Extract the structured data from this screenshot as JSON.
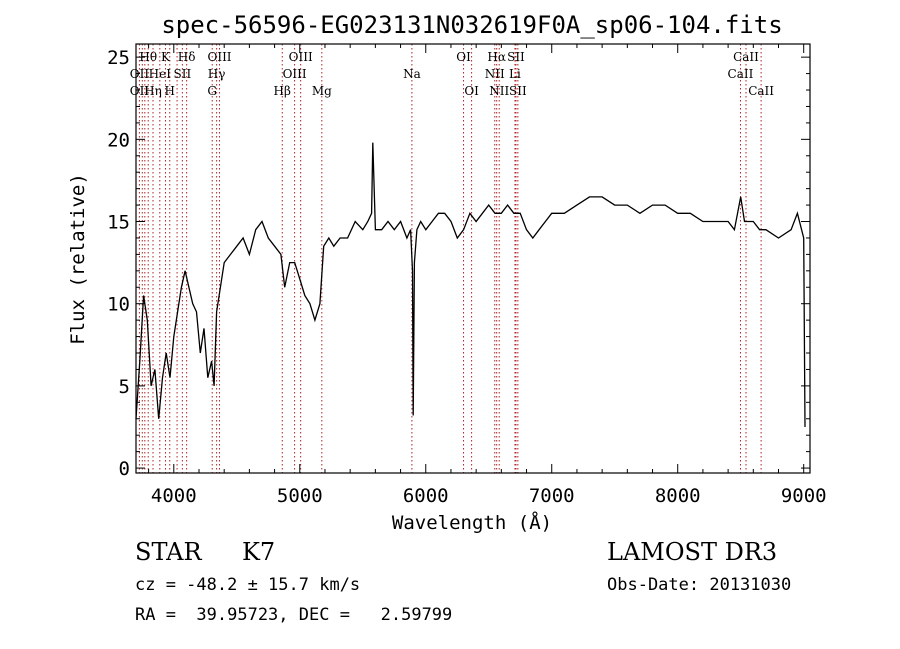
{
  "chart_data": {
    "type": "line",
    "title": "spec-56596-EG023131N032619F0A_sp06-104.fits",
    "xlabel": "Wavelength (Å)",
    "ylabel": "Flux (relative)",
    "xlim": [
      3700,
      9050
    ],
    "ylim": [
      -0.3,
      25.8
    ],
    "xticks": [
      4000,
      5000,
      6000,
      7000,
      8000,
      9000
    ],
    "yticks": [
      0,
      5,
      10,
      15,
      20,
      25
    ],
    "grid": false,
    "series": [
      {
        "x": [
          3700,
          3730,
          3760,
          3790,
          3820,
          3850,
          3880,
          3910,
          3940,
          3970,
          4000,
          4030,
          4060,
          4090,
          4120,
          4150,
          4180,
          4210,
          4240,
          4270,
          4300,
          4320,
          4340,
          4370,
          4400,
          4450,
          4500,
          4550,
          4600,
          4650,
          4700,
          4750,
          4800,
          4850,
          4880,
          4920,
          4960,
          5000,
          5040,
          5080,
          5120,
          5160,
          5190,
          5230,
          5270,
          5320,
          5380,
          5440,
          5500,
          5540,
          5570,
          5580,
          5600,
          5650,
          5700,
          5750,
          5800,
          5850,
          5880,
          5895,
          5900,
          5910,
          5930,
          5960,
          6000,
          6050,
          6100,
          6150,
          6200,
          6250,
          6300,
          6350,
          6400,
          6450,
          6500,
          6550,
          6600,
          6650,
          6700,
          6750,
          6800,
          6850,
          6900,
          6950,
          7000,
          7100,
          7200,
          7300,
          7400,
          7500,
          7600,
          7700,
          7800,
          7900,
          8000,
          8100,
          8200,
          8300,
          8400,
          8450,
          8500,
          8530,
          8560,
          8600,
          8650,
          8700,
          8800,
          8900,
          8950,
          9000,
          9010
        ],
        "y": [
          3.0,
          6.5,
          10.5,
          9.0,
          5.0,
          6.0,
          3.0,
          5.5,
          7.0,
          5.5,
          8.0,
          9.5,
          11.0,
          12.0,
          11.0,
          10.0,
          9.5,
          7.0,
          8.5,
          5.5,
          6.5,
          5.0,
          9.5,
          11.0,
          12.5,
          13.0,
          13.5,
          14.0,
          13.0,
          14.5,
          15.0,
          14.0,
          13.5,
          13.0,
          11.0,
          12.5,
          12.5,
          11.5,
          10.5,
          10.0,
          9.0,
          10.0,
          13.5,
          14.0,
          13.5,
          14.0,
          14.0,
          15.0,
          14.5,
          15.0,
          15.5,
          19.8,
          14.5,
          14.5,
          15.0,
          14.5,
          15.0,
          14.0,
          14.5,
          12.0,
          3.2,
          12.5,
          14.5,
          15.0,
          14.5,
          15.0,
          15.5,
          15.5,
          15.0,
          14.0,
          14.5,
          15.5,
          15.0,
          15.5,
          16.0,
          15.5,
          15.5,
          16.0,
          15.5,
          15.5,
          14.5,
          14.0,
          14.5,
          15.0,
          15.5,
          15.5,
          16.0,
          16.5,
          16.5,
          16.0,
          16.0,
          15.5,
          16.0,
          16.0,
          15.5,
          15.5,
          15.0,
          15.0,
          15.0,
          14.5,
          16.5,
          15.0,
          15.0,
          15.0,
          14.5,
          14.5,
          14.0,
          14.5,
          15.5,
          14.0,
          2.5
        ]
      }
    ],
    "annotations": {
      "line_wavelengths": [
        3727,
        3750,
        3770,
        3797,
        3835,
        3889,
        3934,
        3968,
        4026,
        4102,
        4068,
        4340,
        4305,
        4363,
        4861,
        4959,
        5007,
        5175,
        5890,
        6300,
        6364,
        6548,
        6563,
        6583,
        6708,
        6716,
        6731,
        8498,
        8542,
        8662
      ],
      "labels": [
        {
          "text": "Hθ",
          "w": 3797,
          "row": 0
        },
        {
          "text": "K",
          "w": 3934,
          "row": 0
        },
        {
          "text": "Hδ",
          "w": 4102,
          "row": 0
        },
        {
          "text": "OIII",
          "w": 4363,
          "row": 0
        },
        {
          "text": "OIII",
          "w": 5007,
          "row": 0
        },
        {
          "text": "OI",
          "w": 6300,
          "row": 0
        },
        {
          "text": "Hα",
          "w": 6563,
          "row": 0
        },
        {
          "text": "SII",
          "w": 6716,
          "row": 0
        },
        {
          "text": "CaII",
          "w": 8542,
          "row": 0
        },
        {
          "text": "OII",
          "w": 3727,
          "row": 1
        },
        {
          "text": "HeI",
          "w": 3889,
          "row": 1
        },
        {
          "text": "SII",
          "w": 4068,
          "row": 1
        },
        {
          "text": "Hγ",
          "w": 4340,
          "row": 1
        },
        {
          "text": "OIII",
          "w": 4959,
          "row": 1
        },
        {
          "text": "Na",
          "w": 5890,
          "row": 1
        },
        {
          "text": "NII",
          "w": 6548,
          "row": 1
        },
        {
          "text": "Li",
          "w": 6708,
          "row": 1
        },
        {
          "text": "CaII",
          "w": 8498,
          "row": 1
        },
        {
          "text": "OII",
          "w": 3727,
          "row": 2
        },
        {
          "text": "Hη",
          "w": 3835,
          "row": 2
        },
        {
          "text": "H",
          "w": 3968,
          "row": 2
        },
        {
          "text": "G",
          "w": 4305,
          "row": 2
        },
        {
          "text": "Hβ",
          "w": 4861,
          "row": 2
        },
        {
          "text": "Mg",
          "w": 5175,
          "row": 2
        },
        {
          "text": "OI",
          "w": 6364,
          "row": 2
        },
        {
          "text": "NII",
          "w": 6583,
          "row": 2
        },
        {
          "text": "SII",
          "w": 6731,
          "row": 2
        },
        {
          "text": "CaII",
          "w": 8662,
          "row": 2
        }
      ]
    }
  },
  "info": {
    "class": "STAR",
    "subclass": "K7",
    "survey": "LAMOST DR3",
    "cz": "cz = -48.2 ± 15.7 km/s",
    "obs_date": "Obs-Date: 20131030",
    "radec": "RA =  39.95723, DEC =   2.59799"
  },
  "colors": {
    "line": "#000000",
    "marker": "#b22222"
  }
}
